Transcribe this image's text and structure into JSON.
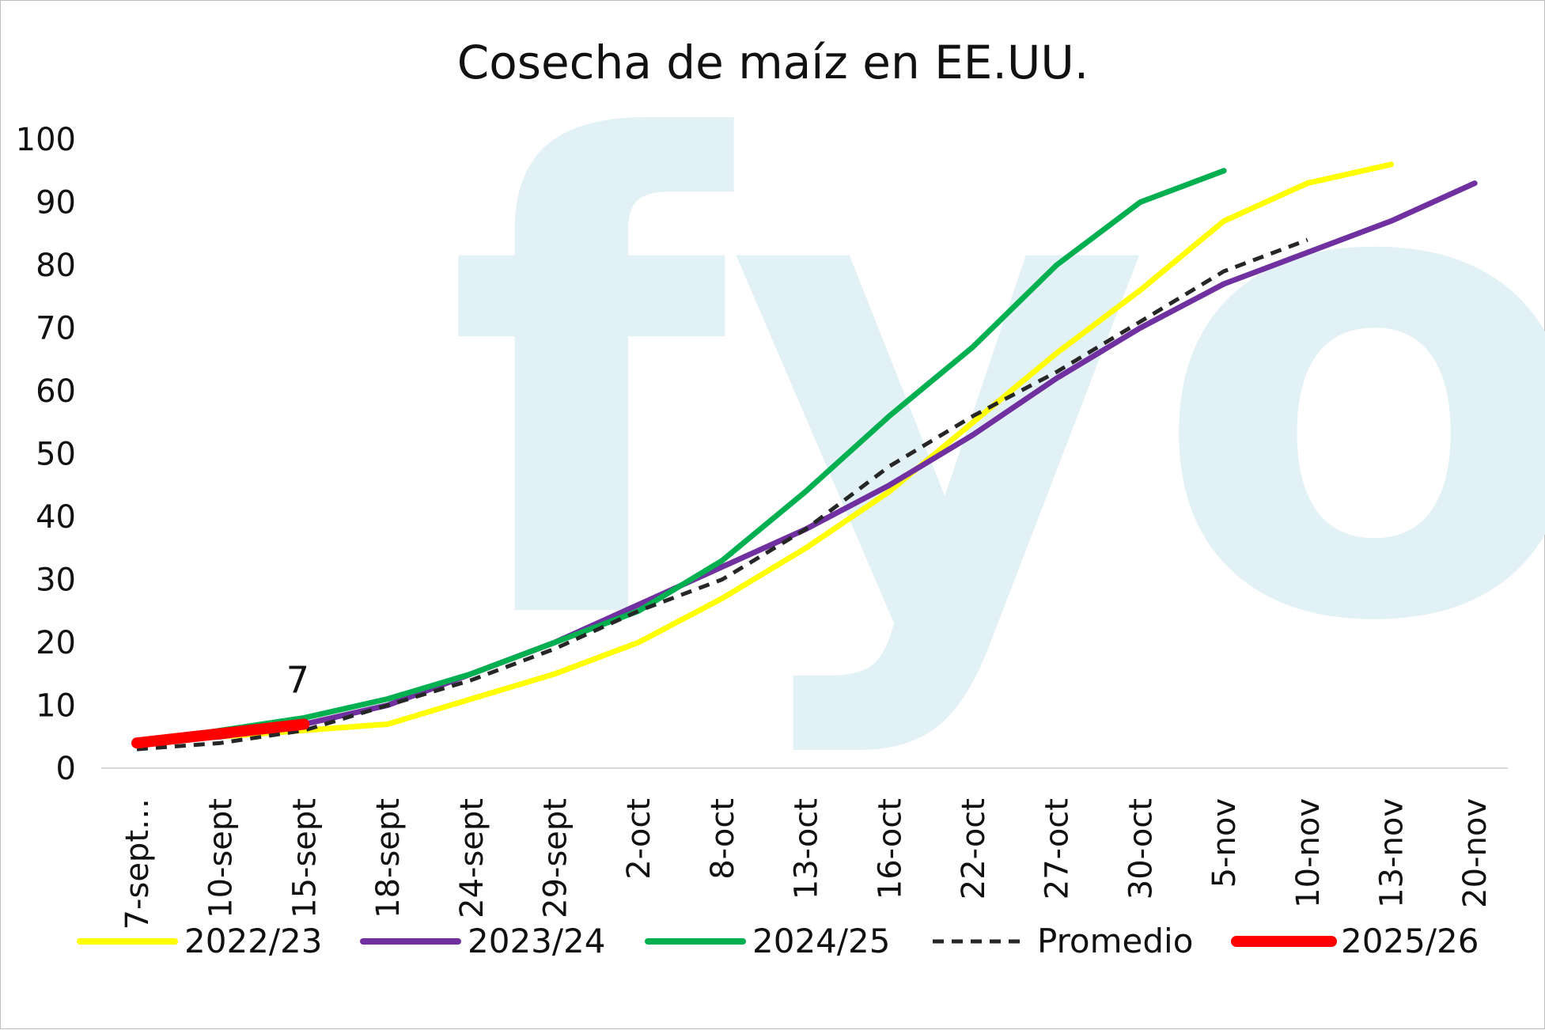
{
  "chart_data": {
    "type": "line",
    "title": "Cosecha de maíz en EE.UU.",
    "watermark": "fyo",
    "xlabel": "",
    "ylabel": "",
    "ylim": [
      0,
      100
    ],
    "yticks": [
      "0",
      "10",
      "20",
      "30",
      "40",
      "50",
      "60",
      "70",
      "80",
      "90",
      "100"
    ],
    "categories": [
      "7-sept…",
      "10-sept",
      "15-sept",
      "18-sept",
      "24-sept",
      "29-sept",
      "2-oct",
      "8-oct",
      "13-oct",
      "16-oct",
      "22-oct",
      "27-oct",
      "30-oct",
      "5-nov",
      "10-nov",
      "13-nov",
      "20-nov"
    ],
    "series": [
      {
        "name": "2022/23",
        "color": "#ffff00",
        "dash": "solid",
        "values": [
          4,
          5,
          6,
          7,
          11,
          15,
          20,
          27,
          35,
          44,
          55,
          66,
          76,
          87,
          93,
          96,
          null
        ]
      },
      {
        "name": "2023/24",
        "color": "#7030a0",
        "dash": "solid",
        "values": [
          4,
          5,
          7,
          10,
          15,
          20,
          26,
          32,
          38,
          45,
          53,
          62,
          70,
          77,
          82,
          87,
          93
        ]
      },
      {
        "name": "2024/25",
        "color": "#00b050",
        "dash": "solid",
        "values": [
          4,
          6,
          8,
          11,
          15,
          20,
          25,
          33,
          44,
          56,
          67,
          80,
          90,
          95,
          null,
          null,
          null
        ]
      },
      {
        "name": "Promedio",
        "color": "#262626",
        "dash": "dashed",
        "values": [
          3,
          4,
          6,
          10,
          14,
          19,
          25,
          30,
          38,
          48,
          56,
          63,
          71,
          79,
          84,
          null,
          null
        ]
      },
      {
        "name": "2025/26",
        "color": "#ff0000",
        "dash": "solid",
        "values": [
          4,
          5.5,
          7,
          null,
          null,
          null,
          null,
          null,
          null,
          null,
          null,
          null,
          null,
          null,
          null,
          null,
          null
        ]
      }
    ],
    "annotations": [
      {
        "series": "2025/26",
        "category": "15-sept",
        "value": 7,
        "text": "7"
      }
    ],
    "legend_position": "bottom"
  }
}
